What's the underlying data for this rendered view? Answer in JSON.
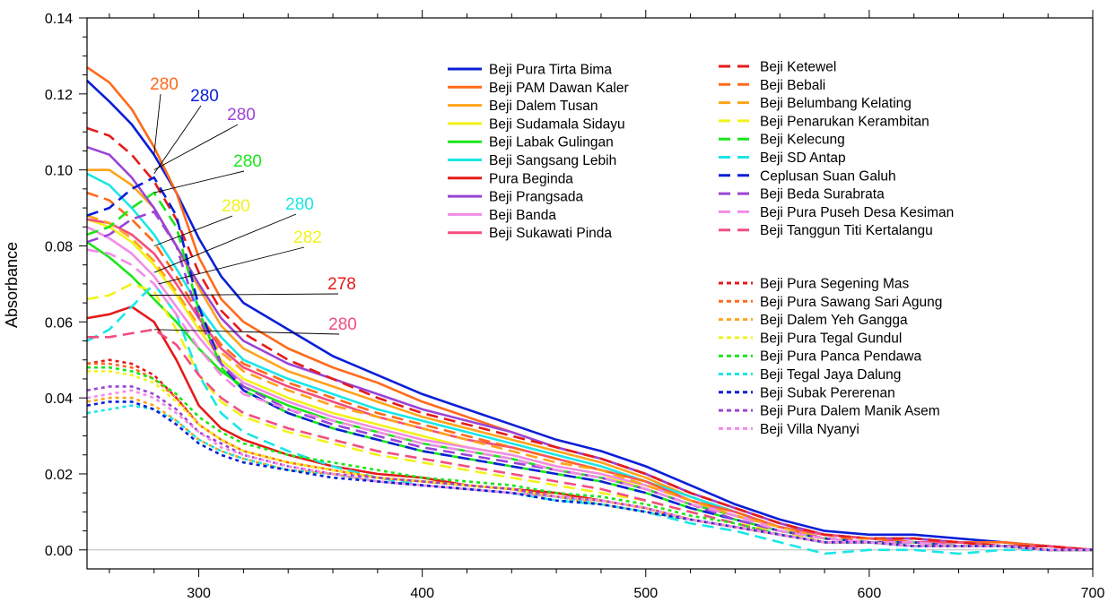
{
  "chart_data": {
    "type": "line",
    "title": "",
    "xlabel": "",
    "ylabel": "Absorbance",
    "xlim": [
      250,
      700
    ],
    "ylim": [
      -0.005,
      0.14
    ],
    "x_ticks": [
      "300",
      "400",
      "500",
      "600",
      "700"
    ],
    "y_ticks": [
      "0.00",
      "0.02",
      "0.04",
      "0.06",
      "0.08",
      "0.10",
      "0.12",
      "0.14"
    ],
    "zero_line": true,
    "grid": false,
    "x": [
      250,
      260,
      270,
      280,
      290,
      300,
      310,
      320,
      340,
      360,
      380,
      400,
      420,
      440,
      460,
      480,
      500,
      520,
      540,
      560,
      580,
      600,
      620,
      640,
      660,
      680,
      700
    ],
    "series": [
      {
        "name": "Beji Pura Tirta Bima",
        "color": "#0a1fd6",
        "dash": "solid",
        "values": [
          0.1235,
          0.118,
          0.112,
          0.104,
          0.094,
          0.082,
          0.072,
          0.065,
          0.058,
          0.051,
          0.046,
          0.041,
          0.037,
          0.033,
          0.029,
          0.026,
          0.022,
          0.017,
          0.012,
          0.008,
          0.005,
          0.004,
          0.004,
          0.003,
          0.002,
          0.001,
          0.0
        ]
      },
      {
        "name": "Beji PAM Dawan Kaler",
        "color": "#ff6a1a",
        "dash": "solid",
        "values": [
          0.127,
          0.123,
          0.116,
          0.106,
          0.094,
          0.077,
          0.066,
          0.06,
          0.053,
          0.048,
          0.044,
          0.039,
          0.035,
          0.031,
          0.027,
          0.024,
          0.02,
          0.015,
          0.011,
          0.007,
          0.004,
          0.003,
          0.003,
          0.002,
          0.002,
          0.001,
          0.0
        ]
      },
      {
        "name": "Beji Dalem Tusan",
        "color": "#ffa31a",
        "dash": "solid",
        "values": [
          0.1,
          0.1,
          0.096,
          0.09,
          0.08,
          0.069,
          0.059,
          0.053,
          0.047,
          0.043,
          0.039,
          0.035,
          0.032,
          0.029,
          0.026,
          0.023,
          0.019,
          0.014,
          0.01,
          0.006,
          0.004,
          0.003,
          0.002,
          0.002,
          0.001,
          0.001,
          0.0
        ]
      },
      {
        "name": "Beji Sudamala Sidayu",
        "color": "#f2f21a",
        "dash": "solid",
        "values": [
          0.087,
          0.085,
          0.081,
          0.075,
          0.067,
          0.058,
          0.05,
          0.045,
          0.04,
          0.036,
          0.033,
          0.03,
          0.027,
          0.025,
          0.022,
          0.02,
          0.016,
          0.012,
          0.009,
          0.006,
          0.003,
          0.002,
          0.002,
          0.001,
          0.001,
          0.0,
          0.0
        ]
      },
      {
        "name": "Beji Labak Gulingan",
        "color": "#1ae61a",
        "dash": "solid",
        "values": [
          0.081,
          0.077,
          0.072,
          0.066,
          0.06,
          0.053,
          0.047,
          0.043,
          0.038,
          0.034,
          0.031,
          0.028,
          0.026,
          0.024,
          0.021,
          0.019,
          0.016,
          0.012,
          0.009,
          0.006,
          0.003,
          0.002,
          0.002,
          0.001,
          0.001,
          0.0,
          0.0
        ]
      },
      {
        "name": "Beji Sangsang Lebih",
        "color": "#1ae6e6",
        "dash": "solid",
        "values": [
          0.099,
          0.096,
          0.09,
          0.083,
          0.074,
          0.064,
          0.056,
          0.05,
          0.045,
          0.041,
          0.037,
          0.034,
          0.031,
          0.028,
          0.025,
          0.022,
          0.018,
          0.014,
          0.01,
          0.006,
          0.004,
          0.003,
          0.002,
          0.002,
          0.001,
          0.001,
          0.0
        ]
      },
      {
        "name": "Pura Beginda",
        "color": "#e61a1a",
        "dash": "solid",
        "values": [
          0.061,
          0.062,
          0.064,
          0.06,
          0.05,
          0.038,
          0.032,
          0.029,
          0.025,
          0.022,
          0.02,
          0.019,
          0.017,
          0.016,
          0.015,
          0.013,
          0.011,
          0.008,
          0.006,
          0.004,
          0.002,
          0.002,
          0.001,
          0.001,
          0.001,
          0.0,
          0.0
        ]
      },
      {
        "name": "Beji Prangsada",
        "color": "#9a44d6",
        "dash": "solid",
        "values": [
          0.106,
          0.104,
          0.098,
          0.09,
          0.08,
          0.07,
          0.061,
          0.055,
          0.049,
          0.045,
          0.041,
          0.037,
          0.034,
          0.031,
          0.027,
          0.024,
          0.02,
          0.015,
          0.011,
          0.007,
          0.004,
          0.003,
          0.003,
          0.002,
          0.001,
          0.001,
          0.0
        ]
      },
      {
        "name": "Beji Banda",
        "color": "#f28ce6",
        "dash": "solid",
        "values": [
          0.085,
          0.082,
          0.078,
          0.072,
          0.064,
          0.056,
          0.049,
          0.044,
          0.039,
          0.035,
          0.032,
          0.029,
          0.027,
          0.025,
          0.022,
          0.02,
          0.017,
          0.013,
          0.009,
          0.006,
          0.003,
          0.002,
          0.002,
          0.001,
          0.001,
          0.0,
          0.0
        ]
      },
      {
        "name": "Beji Sukawati Pinda",
        "color": "#f24e80",
        "dash": "solid",
        "values": [
          0.087,
          0.086,
          0.083,
          0.078,
          0.07,
          0.061,
          0.053,
          0.048,
          0.043,
          0.039,
          0.035,
          0.032,
          0.029,
          0.027,
          0.024,
          0.021,
          0.018,
          0.013,
          0.01,
          0.006,
          0.004,
          0.003,
          0.002,
          0.002,
          0.001,
          0.001,
          0.0
        ]
      },
      {
        "name": "Beji Ketewel",
        "color": "#e61a1a",
        "dash": "long",
        "values": [
          0.111,
          0.109,
          0.104,
          0.097,
          0.087,
          0.073,
          0.063,
          0.057,
          0.05,
          0.045,
          0.04,
          0.036,
          0.033,
          0.03,
          0.027,
          0.024,
          0.02,
          0.015,
          0.011,
          0.007,
          0.004,
          0.003,
          0.003,
          0.002,
          0.001,
          0.001,
          0.0
        ]
      },
      {
        "name": "Beji Bebali",
        "color": "#ff6a1a",
        "dash": "long",
        "values": [
          0.094,
          0.092,
          0.087,
          0.081,
          0.072,
          0.062,
          0.054,
          0.049,
          0.044,
          0.04,
          0.036,
          0.033,
          0.03,
          0.027,
          0.024,
          0.021,
          0.018,
          0.013,
          0.01,
          0.006,
          0.003,
          0.003,
          0.002,
          0.001,
          0.001,
          0.0,
          0.0
        ]
      },
      {
        "name": "Beji Belumbang Kelating",
        "color": "#ffa31a",
        "dash": "long",
        "values": [
          0.088,
          0.086,
          0.082,
          0.076,
          0.068,
          0.059,
          0.052,
          0.047,
          0.042,
          0.038,
          0.035,
          0.032,
          0.029,
          0.026,
          0.023,
          0.021,
          0.017,
          0.013,
          0.009,
          0.006,
          0.003,
          0.002,
          0.002,
          0.001,
          0.001,
          0.0,
          0.0
        ]
      },
      {
        "name": "Beji Penarukan Kerambitan",
        "color": "#f2f21a",
        "dash": "long",
        "values": [
          0.066,
          0.067,
          0.07,
          0.068,
          0.058,
          0.046,
          0.039,
          0.035,
          0.031,
          0.028,
          0.025,
          0.023,
          0.021,
          0.019,
          0.017,
          0.015,
          0.013,
          0.01,
          0.007,
          0.005,
          0.002,
          0.002,
          0.001,
          0.001,
          0.001,
          0.0,
          0.0
        ]
      },
      {
        "name": "Beji Kelecung",
        "color": "#1ae61a",
        "dash": "long",
        "values": [
          0.083,
          0.085,
          0.09,
          0.094,
          0.085,
          0.063,
          0.048,
          0.042,
          0.036,
          0.032,
          0.029,
          0.026,
          0.024,
          0.022,
          0.02,
          0.018,
          0.015,
          0.011,
          0.008,
          0.005,
          0.003,
          0.002,
          0.002,
          0.001,
          0.001,
          0.0,
          0.0
        ]
      },
      {
        "name": "Beji SD Antap",
        "color": "#1ae6e6",
        "dash": "long",
        "values": [
          0.055,
          0.058,
          0.064,
          0.07,
          0.062,
          0.046,
          0.036,
          0.031,
          0.026,
          0.022,
          0.019,
          0.017,
          0.016,
          0.015,
          0.013,
          0.012,
          0.01,
          0.007,
          0.005,
          0.002,
          -0.001,
          0.0,
          0.0,
          -0.001,
          0.0,
          0.0,
          0.0
        ]
      },
      {
        "name": "Ceplusan Suan Galuh",
        "color": "#0a1fd6",
        "dash": "long",
        "values": [
          0.088,
          0.09,
          0.095,
          0.098,
          0.088,
          0.064,
          0.049,
          0.042,
          0.036,
          0.032,
          0.029,
          0.026,
          0.024,
          0.022,
          0.02,
          0.018,
          0.015,
          0.011,
          0.008,
          0.005,
          0.003,
          0.002,
          0.002,
          0.001,
          0.001,
          0.0,
          0.0
        ]
      },
      {
        "name": "Beji Beda Surabrata",
        "color": "#9a44d6",
        "dash": "long",
        "values": [
          0.081,
          0.083,
          0.087,
          0.089,
          0.08,
          0.061,
          0.049,
          0.043,
          0.037,
          0.033,
          0.03,
          0.027,
          0.025,
          0.023,
          0.021,
          0.019,
          0.016,
          0.012,
          0.008,
          0.005,
          0.003,
          0.002,
          0.002,
          0.001,
          0.001,
          0.0,
          0.0
        ]
      },
      {
        "name": "Beji Pura Puseh Desa Kesiman",
        "color": "#f28ce6",
        "dash": "long",
        "values": [
          0.079,
          0.078,
          0.075,
          0.07,
          0.062,
          0.053,
          0.046,
          0.041,
          0.037,
          0.034,
          0.031,
          0.028,
          0.026,
          0.024,
          0.021,
          0.019,
          0.016,
          0.012,
          0.009,
          0.005,
          0.003,
          0.002,
          0.002,
          0.001,
          0.001,
          0.0,
          0.0
        ]
      },
      {
        "name": "Beji Tanggun Titi Kertalangu",
        "color": "#f24e80",
        "dash": "long",
        "values": [
          0.056,
          0.056,
          0.057,
          0.058,
          0.054,
          0.046,
          0.04,
          0.036,
          0.032,
          0.029,
          0.026,
          0.024,
          0.022,
          0.02,
          0.018,
          0.016,
          0.013,
          0.01,
          0.007,
          0.004,
          0.002,
          0.002,
          0.001,
          0.001,
          0.001,
          0.0,
          0.0
        ]
      },
      {
        "name": "Beji Pura Segening Mas",
        "color": "#e61a1a",
        "dash": "short",
        "values": [
          0.049,
          0.05,
          0.049,
          0.046,
          0.04,
          0.033,
          0.029,
          0.026,
          0.023,
          0.021,
          0.019,
          0.018,
          0.017,
          0.016,
          0.014,
          0.013,
          0.011,
          0.008,
          0.006,
          0.004,
          0.002,
          0.002,
          0.001,
          0.001,
          0.001,
          0.0,
          0.0
        ]
      },
      {
        "name": "Beji Pura Sawang Sari Agung",
        "color": "#ff6a1a",
        "dash": "short",
        "values": [
          0.049,
          0.049,
          0.048,
          0.045,
          0.04,
          0.033,
          0.029,
          0.026,
          0.023,
          0.021,
          0.019,
          0.018,
          0.017,
          0.016,
          0.014,
          0.013,
          0.011,
          0.008,
          0.006,
          0.004,
          0.002,
          0.002,
          0.001,
          0.001,
          0.001,
          0.0,
          0.0
        ]
      },
      {
        "name": "Beji Dalem Yeh Gangga",
        "color": "#ffa31a",
        "dash": "short",
        "values": [
          0.039,
          0.04,
          0.04,
          0.038,
          0.034,
          0.029,
          0.026,
          0.024,
          0.021,
          0.02,
          0.018,
          0.017,
          0.016,
          0.015,
          0.014,
          0.012,
          0.01,
          0.008,
          0.006,
          0.004,
          0.002,
          0.002,
          0.001,
          0.001,
          0.001,
          0.0,
          0.0
        ]
      },
      {
        "name": "Beji Pura Tegal Gundul",
        "color": "#f2f21a",
        "dash": "short",
        "values": [
          0.047,
          0.047,
          0.046,
          0.044,
          0.039,
          0.033,
          0.029,
          0.026,
          0.023,
          0.021,
          0.019,
          0.018,
          0.017,
          0.016,
          0.014,
          0.013,
          0.011,
          0.008,
          0.006,
          0.004,
          0.002,
          0.002,
          0.001,
          0.001,
          0.001,
          0.0,
          0.0
        ]
      },
      {
        "name": "Beji Pura Panca Pendawa",
        "color": "#1ae61a",
        "dash": "short",
        "values": [
          0.048,
          0.048,
          0.047,
          0.045,
          0.041,
          0.035,
          0.031,
          0.028,
          0.025,
          0.023,
          0.021,
          0.019,
          0.018,
          0.017,
          0.015,
          0.014,
          0.012,
          0.009,
          0.007,
          0.004,
          0.002,
          0.002,
          0.001,
          0.001,
          0.001,
          0.0,
          0.0
        ]
      },
      {
        "name": "Beji Tegal Jaya Dalung",
        "color": "#1ae6e6",
        "dash": "short",
        "values": [
          0.036,
          0.037,
          0.038,
          0.037,
          0.034,
          0.029,
          0.026,
          0.024,
          0.021,
          0.02,
          0.018,
          0.017,
          0.016,
          0.015,
          0.014,
          0.012,
          0.01,
          0.008,
          0.006,
          0.004,
          0.002,
          0.002,
          0.001,
          0.001,
          0.001,
          0.0,
          0.0
        ]
      },
      {
        "name": "Beji Subak Pererenan",
        "color": "#0a1fd6",
        "dash": "short",
        "values": [
          0.038,
          0.039,
          0.039,
          0.037,
          0.033,
          0.028,
          0.025,
          0.023,
          0.021,
          0.019,
          0.018,
          0.017,
          0.016,
          0.015,
          0.013,
          0.012,
          0.01,
          0.008,
          0.006,
          0.004,
          0.002,
          0.002,
          0.001,
          0.001,
          0.001,
          0.0,
          0.0
        ]
      },
      {
        "name": "Beji Pura Dalem Manik Asem",
        "color": "#9a44d6",
        "dash": "short",
        "values": [
          0.042,
          0.043,
          0.043,
          0.041,
          0.037,
          0.031,
          0.028,
          0.025,
          0.022,
          0.02,
          0.019,
          0.018,
          0.017,
          0.016,
          0.014,
          0.013,
          0.011,
          0.008,
          0.006,
          0.004,
          0.002,
          0.002,
          0.001,
          0.001,
          0.001,
          0.0,
          0.0
        ]
      },
      {
        "name": "Beji Villa Nyanyi",
        "color": "#f28ce6",
        "dash": "short",
        "values": [
          0.04,
          0.041,
          0.042,
          0.04,
          0.036,
          0.031,
          0.027,
          0.025,
          0.022,
          0.02,
          0.018,
          0.017,
          0.016,
          0.015,
          0.014,
          0.013,
          0.011,
          0.008,
          0.006,
          0.004,
          0.002,
          0.002,
          0.001,
          0.001,
          0.001,
          0.0,
          0.0
        ]
      }
    ],
    "annotations": [
      {
        "text": "280",
        "color": "#ff6a1a",
        "target": [
          280,
          0.104
        ]
      },
      {
        "text": "280",
        "color": "#0a1fd6",
        "target": [
          280,
          0.099
        ]
      },
      {
        "text": "280",
        "color": "#9a44d6",
        "target": [
          280,
          0.1
        ]
      },
      {
        "text": "280",
        "color": "#1ae61a",
        "target": [
          280,
          0.094
        ]
      },
      {
        "text": "280",
        "color": "#f2f21a",
        "target": [
          280,
          0.08
        ]
      },
      {
        "text": "280",
        "color": "#1ae6e6",
        "target": [
          280,
          0.073
        ]
      },
      {
        "text": "282",
        "color": "#f2f21a",
        "target": [
          282,
          0.07
        ]
      },
      {
        "text": "278",
        "color": "#e61a1a",
        "target": [
          278,
          0.067
        ]
      },
      {
        "text": "280",
        "color": "#f24e80",
        "target": [
          280,
          0.058
        ]
      }
    ]
  }
}
